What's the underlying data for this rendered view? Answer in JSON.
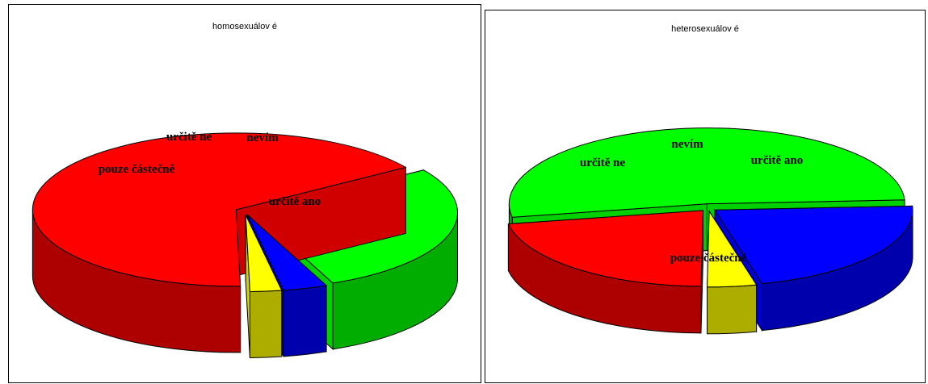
{
  "chart_data": [
    {
      "type": "pie",
      "title": "homosexuálov é",
      "labels": [
        "určitě ano",
        "pouze částečně",
        "určitě ne",
        "nevím"
      ],
      "values": [
        66,
        28,
        3.5,
        2.5
      ],
      "colors": [
        "#ff0000",
        "#00ff00",
        "#0000ff",
        "#ffff00"
      ],
      "legend": "none"
    },
    {
      "type": "pie",
      "title": "heterosexuálov é",
      "labels": [
        "určitě ano",
        "pouze částečně",
        "určitě ne",
        "nevím"
      ],
      "values": [
        22,
        52,
        22,
        4
      ],
      "colors": [
        "#ff0000",
        "#00ff00",
        "#0000ff",
        "#ffff00"
      ],
      "legend": "none"
    }
  ]
}
